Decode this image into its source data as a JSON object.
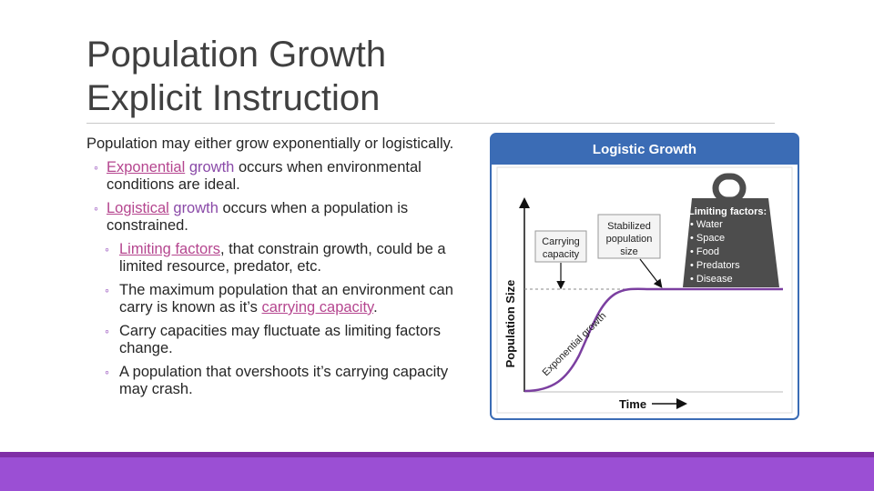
{
  "slide": {
    "title_line1": "Population Growth",
    "title_line2": "Explicit Instruction"
  },
  "content": {
    "intro": "Population may either grow exponentially or logistically.",
    "exp_link": "Exponential",
    "exp_word": "growth",
    "exp_rest": " occurs when environmental conditions are ideal.",
    "log_link": "Logistical",
    "log_word": "growth",
    "log_rest": " occurs when a population is constrained.",
    "lim_link": "Limiting factors",
    "lim_rest": ", that constrain growth, could be a limited resource, predator, etc.",
    "max_text": "The maximum population that an environment can carry is known as it’s ",
    "max_link": "carrying capacity",
    "max_end": ".",
    "fluct_text": "Carry capacities may fluctuate as limiting factors change.",
    "crash_text": "A population that overshoots it’s carrying capacity may crash.",
    "bullet_glyph": "◦"
  },
  "figure": {
    "header": "Logistic Growth",
    "carrying_l1": "Carrying",
    "carrying_l2": "capacity",
    "stab_l1": "Stabilized",
    "stab_l2": "population",
    "stab_l3": "size",
    "weight_title": "Limiting factors:",
    "factors": [
      "• Water",
      "• Space",
      "• Food",
      "• Predators",
      "• Disease"
    ],
    "y_label": "Population Size",
    "x_label": "Time",
    "curve_label": "Exponential growth",
    "colors": {
      "header": "#3b6cb5",
      "curve": "#7b3fa0",
      "weight": "#4d4d4d"
    }
  }
}
